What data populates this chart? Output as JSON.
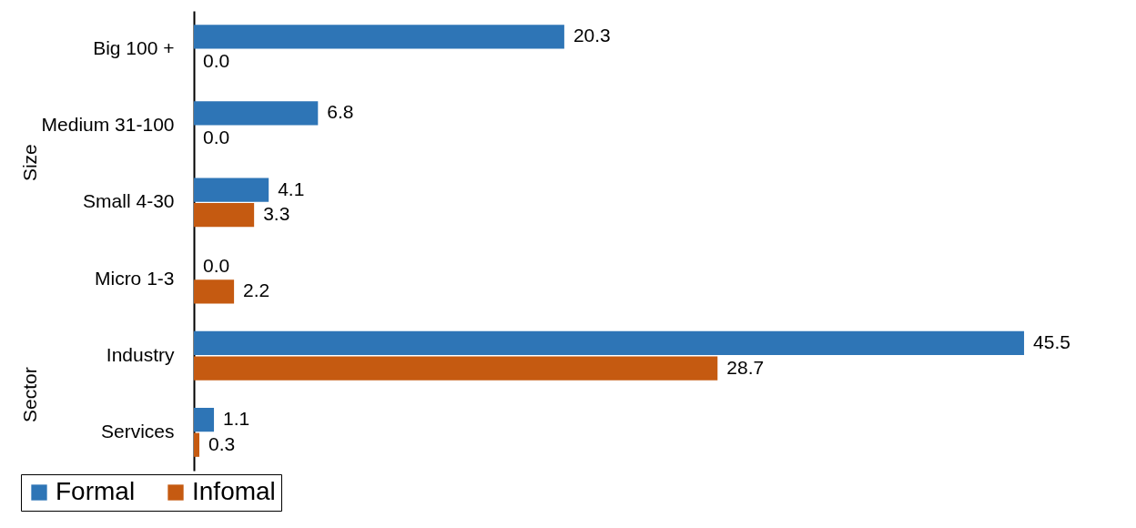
{
  "chart_data": {
    "type": "bar",
    "orientation": "horizontal",
    "categories": [
      "Big 100 +",
      "Medium 31-100",
      "Small 4-30",
      "Micro 1-3",
      "Industry",
      "Services"
    ],
    "series": [
      {
        "name": "Formal",
        "color": "#2e75b6",
        "values": [
          20.3,
          6.8,
          4.1,
          0,
          45.5,
          1.1
        ],
        "value_labels": [
          "20.3",
          "6.8",
          "4.1",
          "0.0",
          "45.5",
          "1.1"
        ]
      },
      {
        "name": "Infomal",
        "color": "#c55a11",
        "values": [
          0,
          0,
          3.3,
          2.2,
          28.7,
          0.3
        ],
        "value_labels": [
          "0.0",
          "0.0",
          "3.3",
          "2.2",
          "28.7",
          "0.3"
        ]
      }
    ],
    "legend": "bottom",
    "annotations": [
      "Size",
      "Sector"
    ]
  }
}
